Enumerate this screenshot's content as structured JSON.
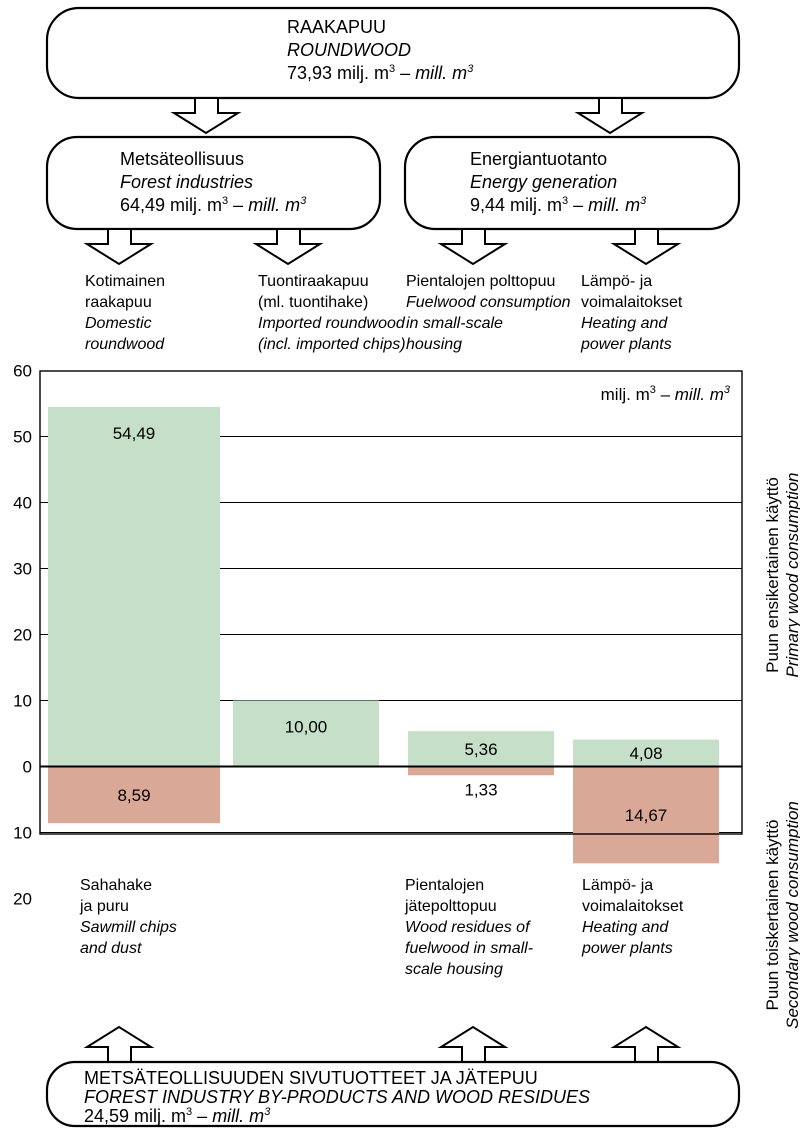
{
  "top_box": {
    "title_fi": "RAAKAPUU",
    "title_en": "ROUNDWOOD",
    "value": "73,93 milj. m",
    "value_sep": " – ",
    "value_unit_en": "mill. m"
  },
  "forest_box": {
    "title_fi": "Metsäteollisuus",
    "title_en": "Forest industries",
    "value": "64,49 milj. m",
    "value_sep": " – ",
    "value_unit_en": "mill. m"
  },
  "energy_box": {
    "title_fi": "Energiantuotanto",
    "title_en": "Energy generation",
    "value": "9,44 milj. m",
    "value_sep": " – ",
    "value_unit_en": "mill. m"
  },
  "primary_labels": [
    {
      "fi": [
        "Kotimainen",
        "raakapuu"
      ],
      "en": [
        "Domestic",
        "roundwood"
      ]
    },
    {
      "fi": [
        "Tuontiraakapuu",
        "(ml. tuontihake)"
      ],
      "en": [
        "Imported roundwood",
        "(incl. imported chips)"
      ]
    },
    {
      "fi": [
        "Pientalojen polttopuu"
      ],
      "en": [
        "Fuelwood consumption",
        "in small-scale",
        "housing"
      ]
    },
    {
      "fi": [
        "Lämpö- ja",
        "voimalaitokset"
      ],
      "en": [
        "Heating and",
        "power plants"
      ]
    }
  ],
  "secondary_labels": [
    {
      "fi": [
        "Sahahake",
        "ja puru"
      ],
      "en": [
        "Sawmill chips",
        "and dust"
      ]
    },
    {
      "fi": [],
      "en": []
    },
    {
      "fi": [
        "Pientalojen",
        "jätepolttopuu"
      ],
      "en": [
        "Wood residues of",
        "fuelwood in small-",
        "scale housing"
      ]
    },
    {
      "fi": [
        "Lämpö- ja",
        "voimalaitokset"
      ],
      "en": [
        "Heating and",
        "power plants"
      ]
    }
  ],
  "bottom_box": {
    "title_fi": "METSÄTEOLLISUUDEN SIVUTUOTTEET JA JÄTEPUU",
    "title_en": "FOREST INDUSTRY BY-PRODUCTS AND WOOD RESIDUES",
    "value": "24,59 milj. m",
    "value_sep": " – ",
    "value_unit_en": "mill. m"
  },
  "right_labels": {
    "primary_fi": "Puun ensikertainen käyttö",
    "primary_en": "Primary wood consumption",
    "secondary_fi": "Puun toiskertainen käyttö",
    "secondary_en": "Secondary wood consumption"
  },
  "chart_data": {
    "type": "bar",
    "unit_label_fi": "milj. m",
    "unit_label_sep": " – ",
    "unit_label_en": "mill. m",
    "unit_superscript": "3",
    "categories": [
      "Kotimainen raakapuu",
      "Tuontiraakapuu (ml. tuontihake)",
      "Pientalojen polttopuu",
      "Lämpö- ja voimalaitokset"
    ],
    "series": [
      {
        "values": [
          54.49,
          10.0,
          5.36,
          4.08
        ],
        "labels": [
          "54,49",
          "10,00",
          "5,36",
          "4,08"
        ]
      },
      {
        "values": [
          8.59,
          0,
          1.33,
          14.67
        ],
        "labels": [
          "8,59",
          "",
          "1,33",
          "14,67"
        ]
      }
    ],
    "y_ticks_up": [
      "0",
      "10",
      "20",
      "30",
      "40",
      "50",
      "60"
    ],
    "y_ticks_down": [
      "10",
      "20"
    ],
    "ylim_up": [
      0,
      60
    ],
    "ylim_down": [
      0,
      20
    ],
    "grid": true,
    "colors": {
      "primary": "#c5dfc9",
      "secondary": "#d9a897"
    }
  }
}
